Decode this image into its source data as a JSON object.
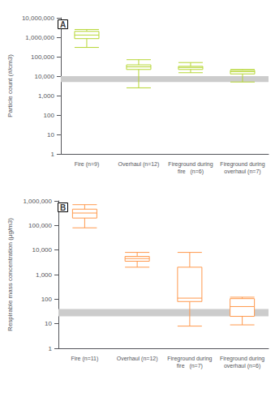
{
  "chart_data": [
    {
      "type": "box",
      "title": "A",
      "ylabel": "Particle count (#/cm3)",
      "categories": [
        "Fire (n=9)",
        "Overhaul (n=12)",
        "Fireground during\nfire   (n=6)",
        "Fireground during\noverhaul (n=7)"
      ],
      "boxes": [
        {
          "min": 300000,
          "q1": 850000,
          "median": 1300000,
          "q3": 2000000,
          "max": 2500000
        },
        {
          "min": 2500,
          "q1": 22000,
          "median": 30000,
          "q3": 38000,
          "max": 70000
        },
        {
          "min": 15000,
          "q1": 22000,
          "median": 28000,
          "q3": 32000,
          "max": 50000
        },
        {
          "min": 5000,
          "q1": 13000,
          "median": 17000,
          "q3": 20000,
          "max": 22000
        }
      ],
      "ylim": [
        1,
        10000000
      ],
      "yticks": [
        1,
        10,
        100,
        {
          "value": 1000,
          "label": "1,000"
        },
        {
          "value": 10000,
          "label": "10,000"
        },
        {
          "value": 100000,
          "label": "100,000"
        },
        {
          "value": 1000000,
          "label": "1,000,000"
        },
        {
          "value": 10000000,
          "label": "10,000,000"
        }
      ],
      "log": "y",
      "grid": false,
      "band": {
        "low": 5000,
        "high": 10000,
        "color": "#cccccc"
      }
    },
    {
      "type": "box",
      "title": "B",
      "ylabel": "Respirable mass concentration (μg/m3)",
      "categories": [
        "Fire (n=11)",
        "Overhaul (n=12)",
        "Fireground during\nfire   (n=7)",
        "Fireground during\noverhaul (n=6)"
      ],
      "boxes": [
        {
          "min": 80000,
          "q1": 200000,
          "median": 320000,
          "q3": 460000,
          "max": 700000
        },
        {
          "min": 2000,
          "q1": 3500,
          "median": 4500,
          "q3": 5500,
          "max": 8000
        },
        {
          "min": 8,
          "q1": 80,
          "median": 110,
          "q3": 2000,
          "max": 8000
        },
        {
          "min": 9,
          "q1": 20,
          "median": 50,
          "q3": 105,
          "max": 120
        }
      ],
      "ylim": [
        1,
        1000000
      ],
      "yticks": [
        1,
        10,
        100,
        {
          "value": 1000,
          "label": "1,000"
        },
        {
          "value": 10000,
          "label": "10,000"
        },
        {
          "value": 100000,
          "label": "100,000"
        },
        {
          "value": 1000000,
          "label": "1,000,000"
        }
      ],
      "log": "y",
      "grid": false,
      "band": {
        "low": 20,
        "high": 40,
        "color": "#cccccc"
      }
    }
  ]
}
